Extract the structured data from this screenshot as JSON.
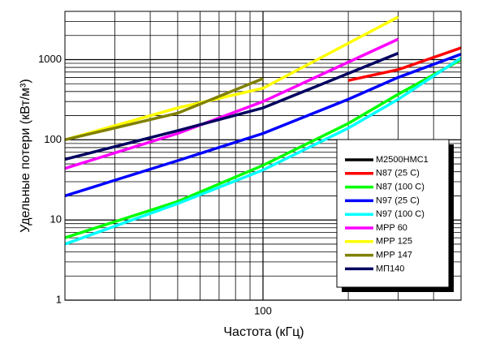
{
  "chart_data": {
    "type": "line",
    "x_label": "Частота (кГц)",
    "y_label": "Удельные потери (кВт/м³)",
    "xlog": true,
    "ylog": true,
    "grid": true,
    "xlim": [
      20,
      500
    ],
    "ylim": [
      1,
      4000
    ],
    "xticks": [
      100
    ],
    "yticks": [
      1,
      10,
      100,
      1000
    ],
    "legend": "lower-right",
    "series": [
      {
        "name": "M2500HMC1",
        "color": "#000000",
        "x": [],
        "values": []
      },
      {
        "name": "N87 (25 C)",
        "color": "#ff0000",
        "x": [
          200,
          300,
          500
        ],
        "values": [
          550,
          750,
          1400
        ]
      },
      {
        "name": "N87 (100 C)",
        "color": "#00ff00",
        "x": [
          20,
          50,
          100,
          200,
          300,
          500
        ],
        "values": [
          6,
          17,
          48,
          160,
          370,
          1000
        ]
      },
      {
        "name": "N97 (25 C)",
        "color": "#0000ff",
        "x": [
          20,
          50,
          100,
          200,
          300,
          500
        ],
        "values": [
          20,
          55,
          120,
          320,
          600,
          1170
        ]
      },
      {
        "name": "N97 (100 C)",
        "color": "#00ffff",
        "x": [
          20,
          50,
          100,
          200,
          300,
          500
        ],
        "values": [
          5,
          16,
          42,
          140,
          320,
          1050
        ]
      },
      {
        "name": "MPP 60",
        "color": "#ff00ff",
        "x": [
          20,
          50,
          100,
          300
        ],
        "values": [
          44,
          120,
          300,
          1800
        ]
      },
      {
        "name": "MPP 125",
        "color": "#ffff00",
        "x": [
          20,
          50,
          100,
          300
        ],
        "values": [
          100,
          250,
          440,
          3400
        ]
      },
      {
        "name": "MPP 147",
        "color": "#808000",
        "x": [
          20,
          50,
          100
        ],
        "values": [
          100,
          215,
          580
        ]
      },
      {
        "name": "МП140",
        "color": "#000060",
        "x": [
          20,
          50,
          100,
          300
        ],
        "values": [
          57,
          130,
          250,
          1200
        ]
      }
    ]
  }
}
